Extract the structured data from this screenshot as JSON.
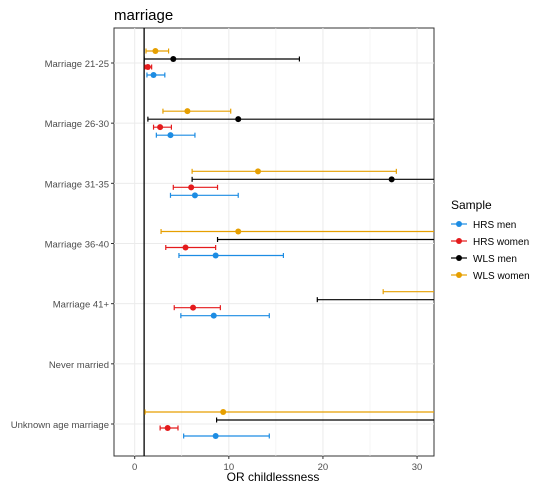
{
  "chart_data": {
    "type": "forest",
    "title": "marriage",
    "xlabel": "OR childlessness",
    "ylabel": "",
    "xlim": [
      -2.2,
      31.8
    ],
    "xticks": [
      0,
      10,
      20,
      30
    ],
    "reference_line": 1,
    "grid": true,
    "legend": {
      "title": "Sample",
      "position": "right",
      "entries": [
        "HRS men",
        "HRS women",
        "WLS men",
        "WLS women"
      ]
    },
    "categories": [
      "Marriage 21-25",
      "Marriage 26-30",
      "Marriage 31-35",
      "Marriage 36-40",
      "Marriage 41+",
      "Never married",
      "Unknown age marriage"
    ],
    "series": [
      {
        "name": "WLS women",
        "color": "#E69F00",
        "points": [
          {
            "category": "Marriage 21-25",
            "or": 2.2,
            "lo": 1.2,
            "hi": 3.6
          },
          {
            "category": "Marriage 26-30",
            "or": 5.6,
            "lo": 3.0,
            "hi": 10.2
          },
          {
            "category": "Marriage 31-35",
            "or": 13.1,
            "lo": 6.1,
            "hi": 27.8
          },
          {
            "category": "Marriage 36-40",
            "or": 11.0,
            "lo": 2.8,
            "hi": 35
          },
          {
            "category": "Marriage 41+",
            "or": null,
            "lo": 26.4,
            "hi": 35
          },
          {
            "category": "Unknown age marriage",
            "or": 9.4,
            "lo": 1.1,
            "hi": 35
          }
        ]
      },
      {
        "name": "WLS men",
        "color": "#000000",
        "points": [
          {
            "category": "Marriage 21-25",
            "or": 4.1,
            "lo": 1.0,
            "hi": 17.5
          },
          {
            "category": "Marriage 26-30",
            "or": 11.0,
            "lo": 1.4,
            "hi": 35
          },
          {
            "category": "Marriage 31-35",
            "or": 27.3,
            "lo": 6.1,
            "hi": 35
          },
          {
            "category": "Marriage 36-40",
            "or": null,
            "lo": 8.8,
            "hi": 35
          },
          {
            "category": "Marriage 41+",
            "or": null,
            "lo": 19.4,
            "hi": 35
          },
          {
            "category": "Unknown age marriage",
            "or": null,
            "lo": 8.7,
            "hi": 35
          }
        ]
      },
      {
        "name": "HRS women",
        "color": "#E41A1C",
        "points": [
          {
            "category": "Marriage 21-25",
            "or": 1.4,
            "lo": 1.1,
            "hi": 1.8
          },
          {
            "category": "Marriage 26-30",
            "or": 2.7,
            "lo": 2.0,
            "hi": 3.9
          },
          {
            "category": "Marriage 31-35",
            "or": 6.0,
            "lo": 4.1,
            "hi": 8.8
          },
          {
            "category": "Marriage 36-40",
            "or": 5.4,
            "lo": 3.3,
            "hi": 8.6
          },
          {
            "category": "Marriage 41+",
            "or": 6.2,
            "lo": 4.2,
            "hi": 9.1
          },
          {
            "category": "Unknown age marriage",
            "or": 3.5,
            "lo": 2.7,
            "hi": 4.6
          }
        ]
      },
      {
        "name": "HRS men",
        "color": "#1C8CE3",
        "points": [
          {
            "category": "Marriage 21-25",
            "or": 2.0,
            "lo": 1.3,
            "hi": 3.2
          },
          {
            "category": "Marriage 26-30",
            "or": 3.8,
            "lo": 2.3,
            "hi": 6.4
          },
          {
            "category": "Marriage 31-35",
            "or": 6.4,
            "lo": 3.8,
            "hi": 11.0
          },
          {
            "category": "Marriage 36-40",
            "or": 8.6,
            "lo": 4.7,
            "hi": 15.8
          },
          {
            "category": "Marriage 41+",
            "or": 8.4,
            "lo": 4.9,
            "hi": 14.3
          },
          {
            "category": "Unknown age marriage",
            "or": 8.6,
            "lo": 5.2,
            "hi": 14.3
          }
        ]
      }
    ]
  }
}
